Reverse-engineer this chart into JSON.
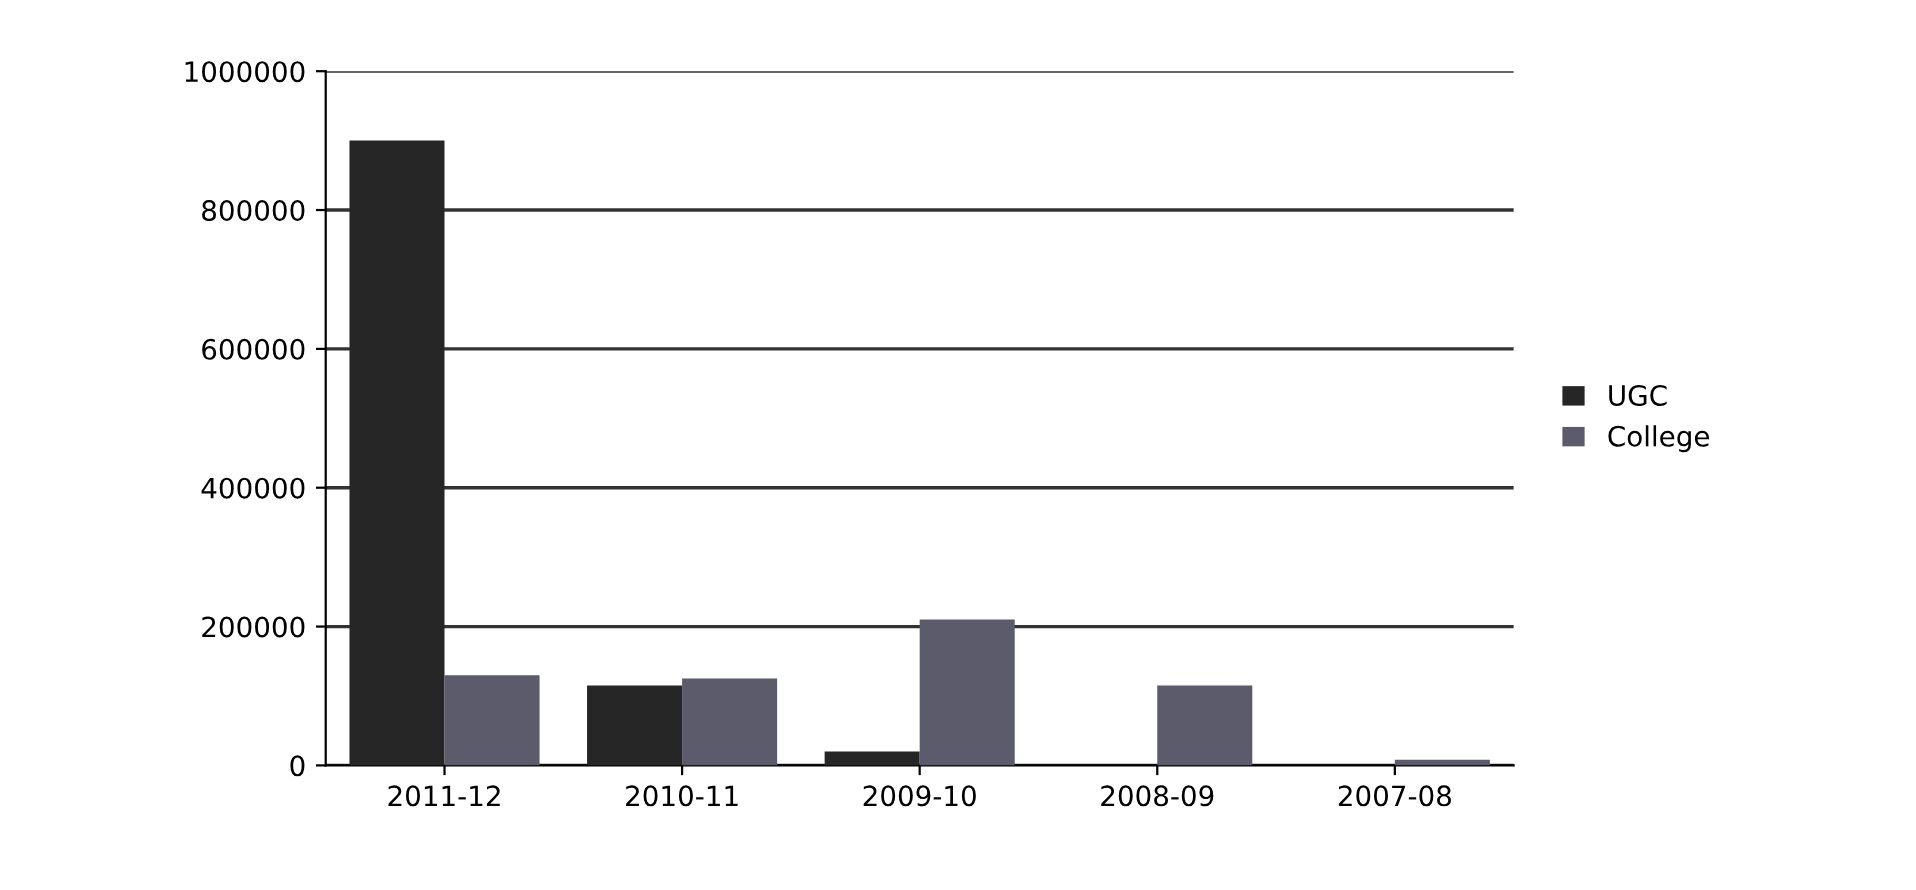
{
  "chart_data": {
    "type": "bar",
    "categories": [
      "2011-12",
      "2010-11",
      "2009-10",
      "2008-09",
      "2007-08"
    ],
    "series": [
      {
        "name": "UGC",
        "color": "#262626",
        "values": [
          900000,
          115000,
          20000,
          0,
          0
        ]
      },
      {
        "name": "College",
        "color": "#5b5b6b",
        "values": [
          130000,
          125000,
          210000,
          115000,
          8000
        ]
      }
    ],
    "ylim": [
      0,
      1000000
    ],
    "yticks": [
      0,
      200000,
      400000,
      600000,
      800000,
      1000000
    ],
    "grid": "y",
    "legend": "right"
  }
}
